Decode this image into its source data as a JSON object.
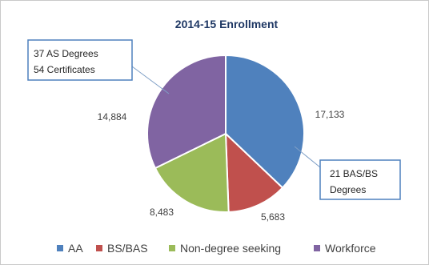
{
  "chart_data": {
    "type": "pie",
    "title": "2014-15 Enrollment",
    "categories": [
      "AA",
      "BS/BAS",
      "Non-degree seeking",
      "Workforce"
    ],
    "values": [
      17133,
      5683,
      8483,
      14884
    ],
    "colors": [
      "#4f81bd",
      "#c0504d",
      "#9bbb59",
      "#8064a2"
    ],
    "data_labels": [
      "17,133",
      "5,683",
      "8,483",
      "14,884"
    ],
    "legend_position": "bottom",
    "annotations": [
      {
        "lines": [
          "37 AS Degrees",
          "54 Certificates"
        ],
        "points_to": "Workforce"
      },
      {
        "lines": [
          "21 BAS/BS",
          "Degrees"
        ],
        "points_to": "AA"
      }
    ]
  }
}
